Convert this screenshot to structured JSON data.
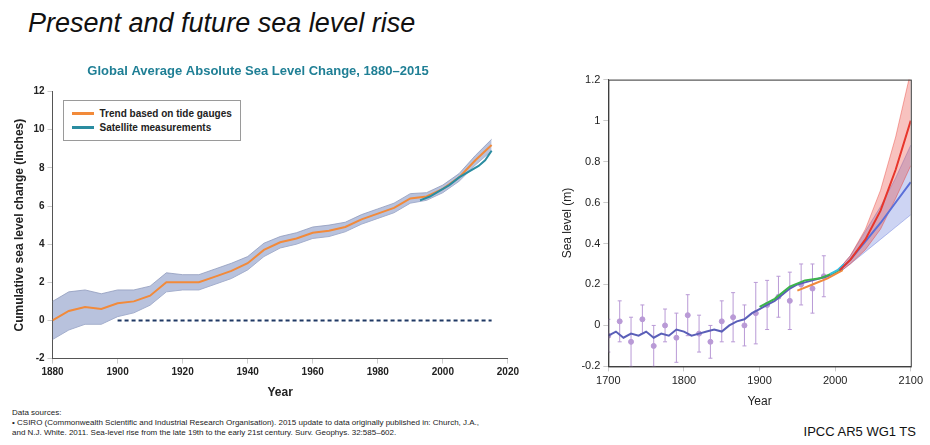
{
  "slide": {
    "title": "Present and future sea level rise",
    "sources": [
      "Data sources:",
      "• CSIRO (Commonwealth Scientific and Industrial Research Organisation). 2015 update to data originally published in: Church, J.A.,",
      "and N.J. White. 2011. Sea-level rise from the late 19th to the early 21st century. Surv. Geophys. 32:585–602."
    ],
    "credit": "IPCC AR5 WG1 TS"
  },
  "chart_data": [
    {
      "type": "line",
      "title": "Global Average Absolute Sea Level Change, 1880–2015",
      "x_label": "Year",
      "y_label": "Cumulative sea level change (inches)",
      "xlim": [
        1880,
        2020
      ],
      "xticks": [
        1880,
        1900,
        1920,
        1940,
        1960,
        1980,
        2000,
        2020
      ],
      "ylim": [
        -2,
        12
      ],
      "yticks": [
        -2,
        0,
        2,
        4,
        6,
        8,
        10,
        12
      ],
      "grid": false,
      "legend": "upper left",
      "series": [
        {
          "name": "Trend based on tide gauges",
          "color": "#f28a3a",
          "x": [
            1880,
            1885,
            1890,
            1895,
            1900,
            1905,
            1910,
            1915,
            1920,
            1925,
            1930,
            1935,
            1940,
            1945,
            1950,
            1955,
            1960,
            1965,
            1970,
            1975,
            1980,
            1985,
            1990,
            1995,
            2000,
            2005,
            2010,
            2015
          ],
          "values": [
            0.0,
            0.5,
            0.7,
            0.6,
            0.9,
            1.0,
            1.3,
            2.0,
            2.0,
            2.0,
            2.3,
            2.6,
            3.0,
            3.7,
            4.1,
            4.3,
            4.6,
            4.7,
            4.9,
            5.3,
            5.6,
            5.9,
            6.4,
            6.5,
            6.9,
            7.5,
            8.4,
            9.2
          ],
          "lower": [
            -1.0,
            -0.5,
            -0.2,
            -0.2,
            0.2,
            0.4,
            0.8,
            1.5,
            1.6,
            1.6,
            1.9,
            2.2,
            2.65,
            3.35,
            3.8,
            4.0,
            4.3,
            4.4,
            4.65,
            5.05,
            5.35,
            5.65,
            6.15,
            6.3,
            6.7,
            7.3,
            8.15,
            8.9
          ],
          "upper": [
            1.0,
            1.5,
            1.6,
            1.4,
            1.6,
            1.6,
            1.8,
            2.5,
            2.4,
            2.4,
            2.7,
            3.0,
            3.35,
            4.05,
            4.4,
            4.6,
            4.9,
            5.0,
            5.15,
            5.55,
            5.85,
            6.15,
            6.65,
            6.7,
            7.1,
            7.7,
            8.65,
            9.5
          ]
        },
        {
          "name": "Satellite measurements",
          "color": "#2a8ca0",
          "x": [
            1993,
            1996,
            1999,
            2002,
            2005,
            2008,
            2011,
            2013,
            2015
          ],
          "values": [
            6.3,
            6.5,
            6.8,
            7.1,
            7.5,
            7.8,
            8.1,
            8.4,
            8.9
          ]
        },
        {
          "color": "#1f3864",
          "line_style": "dashed",
          "x": [
            1900,
            2015
          ],
          "values": [
            0,
            0
          ]
        }
      ]
    },
    {
      "type": "line",
      "x_label": "Year",
      "y_label": "Sea level (m)",
      "xlim": [
        1700,
        2100
      ],
      "xticks": [
        1700,
        1800,
        1900,
        2000,
        2100
      ],
      "ylim": [
        -0.2,
        1.2
      ],
      "yticks": [
        -0.2,
        0,
        0.2,
        0.4,
        0.6,
        0.8,
        1,
        1.2
      ],
      "grid": false,
      "series": [
        {
          "type": "scatter",
          "color": "#b99ad6",
          "x": [
            1700,
            1715,
            1730,
            1745,
            1760,
            1775,
            1790,
            1805,
            1820,
            1835,
            1850,
            1865,
            1880,
            1895,
            1910,
            1925,
            1940,
            1955,
            1970,
            1985
          ],
          "values": [
            -0.05,
            0.02,
            -0.08,
            0.03,
            -0.1,
            0.0,
            -0.06,
            0.05,
            -0.04,
            -0.08,
            0.02,
            0.04,
            0.0,
            0.06,
            0.1,
            0.14,
            0.12,
            0.2,
            0.18,
            0.24
          ],
          "error": [
            0.08,
            0.1,
            0.12,
            0.07,
            0.1,
            0.08,
            0.12,
            0.1,
            0.09,
            0.08,
            0.1,
            0.12,
            0.1,
            0.15,
            0.12,
            0.1,
            0.14,
            0.1,
            0.12,
            0.1
          ]
        },
        {
          "color": "#5a5fb8",
          "x": [
            1700,
            1710,
            1720,
            1730,
            1740,
            1750,
            1760,
            1770,
            1780,
            1790,
            1800,
            1810,
            1820,
            1830,
            1840,
            1850,
            1860,
            1870,
            1880,
            1890,
            1900,
            1910,
            1920,
            1930,
            1940,
            1950,
            1960,
            1970,
            1980,
            1990,
            2000,
            2010
          ],
          "values": [
            -0.05,
            -0.03,
            -0.06,
            -0.04,
            -0.05,
            -0.03,
            -0.06,
            -0.04,
            -0.05,
            -0.02,
            -0.03,
            -0.05,
            -0.04,
            -0.03,
            -0.02,
            -0.03,
            0.0,
            0.02,
            0.03,
            0.06,
            0.08,
            0.1,
            0.12,
            0.15,
            0.18,
            0.2,
            0.21,
            0.22,
            0.23,
            0.24,
            0.26,
            0.28
          ]
        },
        {
          "color": "#3cb44b",
          "x": [
            1900,
            1920,
            1940,
            1960,
            1980,
            2000,
            2010
          ],
          "values": [
            0.09,
            0.13,
            0.19,
            0.22,
            0.23,
            0.26,
            0.28
          ]
        },
        {
          "color": "#f08a3c",
          "x": [
            1950,
            1970,
            1990,
            2010
          ],
          "values": [
            0.17,
            0.2,
            0.23,
            0.27
          ]
        },
        {
          "color": "#38c0e0",
          "x": [
            1993,
            2003,
            2012
          ],
          "values": [
            0.25,
            0.27,
            0.3
          ]
        },
        {
          "color": "#5a6fd8",
          "x": [
            2006,
            2020,
            2040,
            2060,
            2080,
            2100
          ],
          "values": [
            0.27,
            0.32,
            0.41,
            0.5,
            0.6,
            0.7
          ],
          "lower": [
            0.26,
            0.3,
            0.36,
            0.42,
            0.48,
            0.54
          ],
          "upper": [
            0.28,
            0.34,
            0.46,
            0.58,
            0.72,
            0.88
          ]
        },
        {
          "color": "#e8352b",
          "x": [
            2006,
            2020,
            2040,
            2060,
            2080,
            2100
          ],
          "values": [
            0.27,
            0.32,
            0.42,
            0.56,
            0.76,
            1.0
          ],
          "lower": [
            0.26,
            0.3,
            0.37,
            0.47,
            0.62,
            0.78
          ],
          "upper": [
            0.28,
            0.34,
            0.47,
            0.66,
            0.92,
            1.24
          ]
        }
      ]
    }
  ]
}
